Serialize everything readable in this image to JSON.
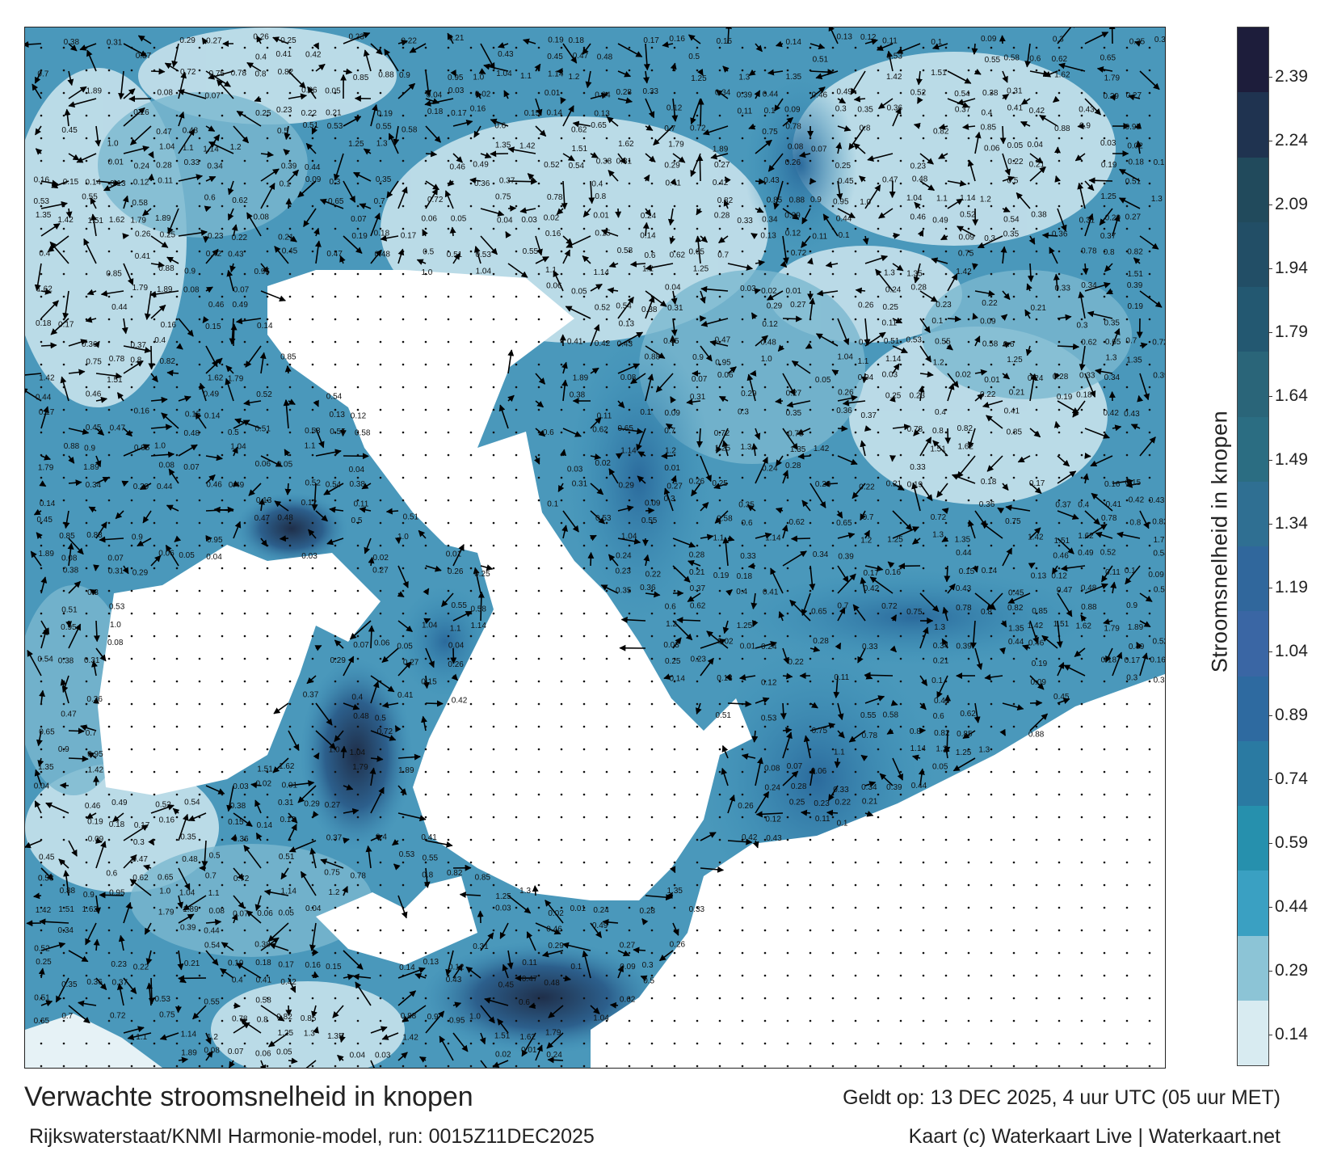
{
  "title": "Verwachte stroomsnelheid in knopen",
  "subtitle": "Rijkswaterstaat/KNMI Harmonie-model, run: 0015Z11DEC2025",
  "valid_time": "Geldt op: 13 DEC 2025, 4 uur UTC (05 uur MET)",
  "credit": "Kaart (c) Waterkaart Live | Waterkaart.net",
  "colorbar": {
    "label": "Stroomsnelheid in knopen",
    "ticks": [
      "2.39",
      "2.24",
      "2.09",
      "1.94",
      "1.79",
      "1.64",
      "1.49",
      "1.34",
      "1.19",
      "1.04",
      "0.89",
      "0.74",
      "0.59",
      "0.44",
      "0.29",
      "0.14"
    ],
    "colors": [
      "#1d1d3b",
      "#1f3350",
      "#214a5c",
      "#224e66",
      "#235871",
      "#2a6579",
      "#2b6d82",
      "#2f6f92",
      "#30679c",
      "#3a66a4",
      "#2e6aa0",
      "#2a7aa2",
      "#2690ad",
      "#3aa0c2",
      "#8cc4d6",
      "#d8ebf1"
    ]
  },
  "speed_labels": [
    "0.38",
    "0.31",
    "0.29",
    "0.27",
    "0.26",
    "0.25",
    "0.23",
    "0.22",
    "0.21",
    "0.19",
    "0.18",
    "0.17",
    "0.16",
    "0.15",
    "0.14",
    "0.13",
    "0.12",
    "0.11",
    "0.1",
    "0.09",
    "0.3",
    "0.35",
    "0.36",
    "0.37",
    "0.4",
    "0.41",
    "0.42",
    "0.43",
    "0.45",
    "0.47",
    "0.48",
    "0.5",
    "0.51",
    "0.53",
    "0.55",
    "0.58",
    "0.6",
    "0.62",
    "0.65",
    "0.7",
    "0.72",
    "0.75",
    "0.78",
    "0.8",
    "0.82",
    "0.85",
    "0.88",
    "0.9",
    "0.95",
    "1.0",
    "1.04",
    "1.1",
    "1.14",
    "1.2",
    "1.25",
    "1.3",
    "1.35",
    "1.42",
    "1.51",
    "1.62",
    "1.79",
    "1.89",
    "0.08",
    "0.07",
    "0.06",
    "0.05",
    "0.04",
    "0.03",
    "0.02",
    "0.01",
    "0.24",
    "0.28",
    "0.33",
    "0.34",
    "0.39",
    "0.44",
    "0.46",
    "0.49",
    "0.52",
    "0.54"
  ]
}
